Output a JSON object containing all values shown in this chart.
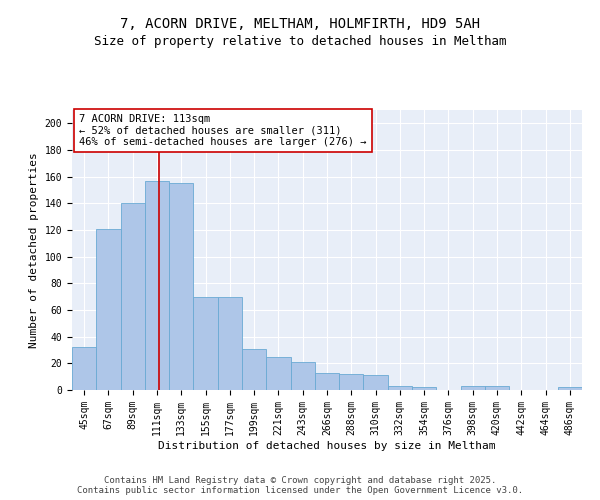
{
  "title": "7, ACORN DRIVE, MELTHAM, HOLMFIRTH, HD9 5AH",
  "subtitle": "Size of property relative to detached houses in Meltham",
  "xlabel": "Distribution of detached houses by size in Meltham",
  "ylabel": "Number of detached properties",
  "categories": [
    "45sqm",
    "67sqm",
    "89sqm",
    "111sqm",
    "133sqm",
    "155sqm",
    "177sqm",
    "199sqm",
    "221sqm",
    "243sqm",
    "266sqm",
    "288sqm",
    "310sqm",
    "332sqm",
    "354sqm",
    "376sqm",
    "398sqm",
    "420sqm",
    "442sqm",
    "464sqm",
    "486sqm"
  ],
  "values": [
    32,
    121,
    140,
    157,
    155,
    70,
    70,
    31,
    25,
    21,
    13,
    12,
    11,
    3,
    2,
    0,
    3,
    3,
    0,
    0,
    2
  ],
  "bar_color": "#aec6e8",
  "bar_edge_color": "#6aaad4",
  "annotation_text": "7 ACORN DRIVE: 113sqm\n← 52% of detached houses are smaller (311)\n46% of semi-detached houses are larger (276) →",
  "annotation_box_color": "#ffffff",
  "annotation_box_edge": "#cc0000",
  "red_line_color": "#cc0000",
  "ylim": [
    0,
    210
  ],
  "yticks": [
    0,
    20,
    40,
    60,
    80,
    100,
    120,
    140,
    160,
    180,
    200
  ],
  "background_color": "#e8eef8",
  "footer_line1": "Contains HM Land Registry data © Crown copyright and database right 2025.",
  "footer_line2": "Contains public sector information licensed under the Open Government Licence v3.0.",
  "title_fontsize": 10,
  "subtitle_fontsize": 9,
  "axis_label_fontsize": 8,
  "tick_fontsize": 7,
  "annotation_fontsize": 7.5,
  "footer_fontsize": 6.5
}
